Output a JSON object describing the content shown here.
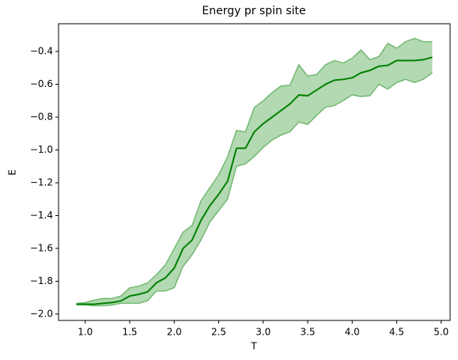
{
  "chart_data": {
    "type": "line",
    "title": "Energy pr spin site",
    "x_label": "T",
    "y_label": "E",
    "x": [
      0.9,
      1.0,
      1.1,
      1.2,
      1.3,
      1.4,
      1.5,
      1.6,
      1.7,
      1.8,
      1.9,
      2.0,
      2.1,
      2.2,
      2.3,
      2.4,
      2.5,
      2.6,
      2.7,
      2.8,
      2.9,
      3.0,
      3.1,
      3.2,
      3.3,
      3.4,
      3.5,
      3.6,
      3.7,
      3.8,
      3.9,
      4.0,
      4.1,
      4.2,
      4.3,
      4.4,
      4.5,
      4.6,
      4.7,
      4.8,
      4.9
    ],
    "series": [
      {
        "color": "#008000",
        "values": [
          -1.94,
          -1.94,
          -1.94,
          -1.935,
          -1.93,
          -1.92,
          -1.89,
          -1.88,
          -1.865,
          -1.81,
          -1.78,
          -1.72,
          -1.6,
          -1.55,
          -1.43,
          -1.34,
          -1.27,
          -1.19,
          -0.99,
          -0.99,
          -0.89,
          -0.84,
          -0.8,
          -0.76,
          -0.72,
          -0.665,
          -0.67,
          -0.635,
          -0.6,
          -0.575,
          -0.57,
          -0.56,
          -0.53,
          -0.515,
          -0.49,
          -0.485,
          -0.455,
          -0.455,
          -0.455,
          -0.45,
          -0.435
        ]
      }
    ],
    "band": {
      "color": "#008000",
      "opacity": 0.3,
      "upper": [
        -1.935,
        -1.93,
        -1.915,
        -1.905,
        -1.905,
        -1.89,
        -1.84,
        -1.83,
        -1.81,
        -1.76,
        -1.7,
        -1.6,
        -1.5,
        -1.46,
        -1.31,
        -1.23,
        -1.15,
        -1.04,
        -0.88,
        -0.89,
        -0.74,
        -0.7,
        -0.65,
        -0.61,
        -0.605,
        -0.48,
        -0.55,
        -0.54,
        -0.48,
        -0.455,
        -0.47,
        -0.44,
        -0.39,
        -0.45,
        -0.43,
        -0.35,
        -0.38,
        -0.34,
        -0.32,
        -0.34,
        -0.34
      ],
      "lower": [
        -1.945,
        -1.945,
        -1.95,
        -1.95,
        -1.945,
        -1.935,
        -1.935,
        -1.935,
        -1.92,
        -1.86,
        -1.86,
        -1.84,
        -1.71,
        -1.64,
        -1.55,
        -1.44,
        -1.37,
        -1.3,
        -1.1,
        -1.085,
        -1.04,
        -0.985,
        -0.94,
        -0.91,
        -0.89,
        -0.83,
        -0.845,
        -0.79,
        -0.74,
        -0.73,
        -0.7,
        -0.665,
        -0.675,
        -0.67,
        -0.6,
        -0.63,
        -0.59,
        -0.57,
        -0.59,
        -0.57,
        -0.53
      ]
    },
    "xlim": [
      0.7,
      5.1
    ],
    "xticks": [
      {
        "value": 1.0,
        "label": "1.0"
      },
      {
        "value": 1.5,
        "label": "1.5"
      },
      {
        "value": 2.0,
        "label": "2.0"
      },
      {
        "value": 2.5,
        "label": "2.5"
      },
      {
        "value": 3.0,
        "label": "3.0"
      },
      {
        "value": 3.5,
        "label": "3.5"
      },
      {
        "value": 4.0,
        "label": "4.0"
      },
      {
        "value": 4.5,
        "label": "4.5"
      },
      {
        "value": 5.0,
        "label": "5.0"
      }
    ],
    "ylim": [
      -2.039,
      -0.231
    ],
    "yticks": [
      {
        "value": -2.0,
        "label": "−2.0"
      },
      {
        "value": -1.8,
        "label": "−1.8"
      },
      {
        "value": -1.6,
        "label": "−1.6"
      },
      {
        "value": -1.4,
        "label": "−1.4"
      },
      {
        "value": -1.2,
        "label": "−1.2"
      },
      {
        "value": -1.0,
        "label": "−1.0"
      },
      {
        "value": -0.8,
        "label": "−0.8"
      },
      {
        "value": -0.6,
        "label": "−0.6"
      },
      {
        "value": -0.4,
        "label": "−0.4"
      }
    ],
    "grid": false
  }
}
